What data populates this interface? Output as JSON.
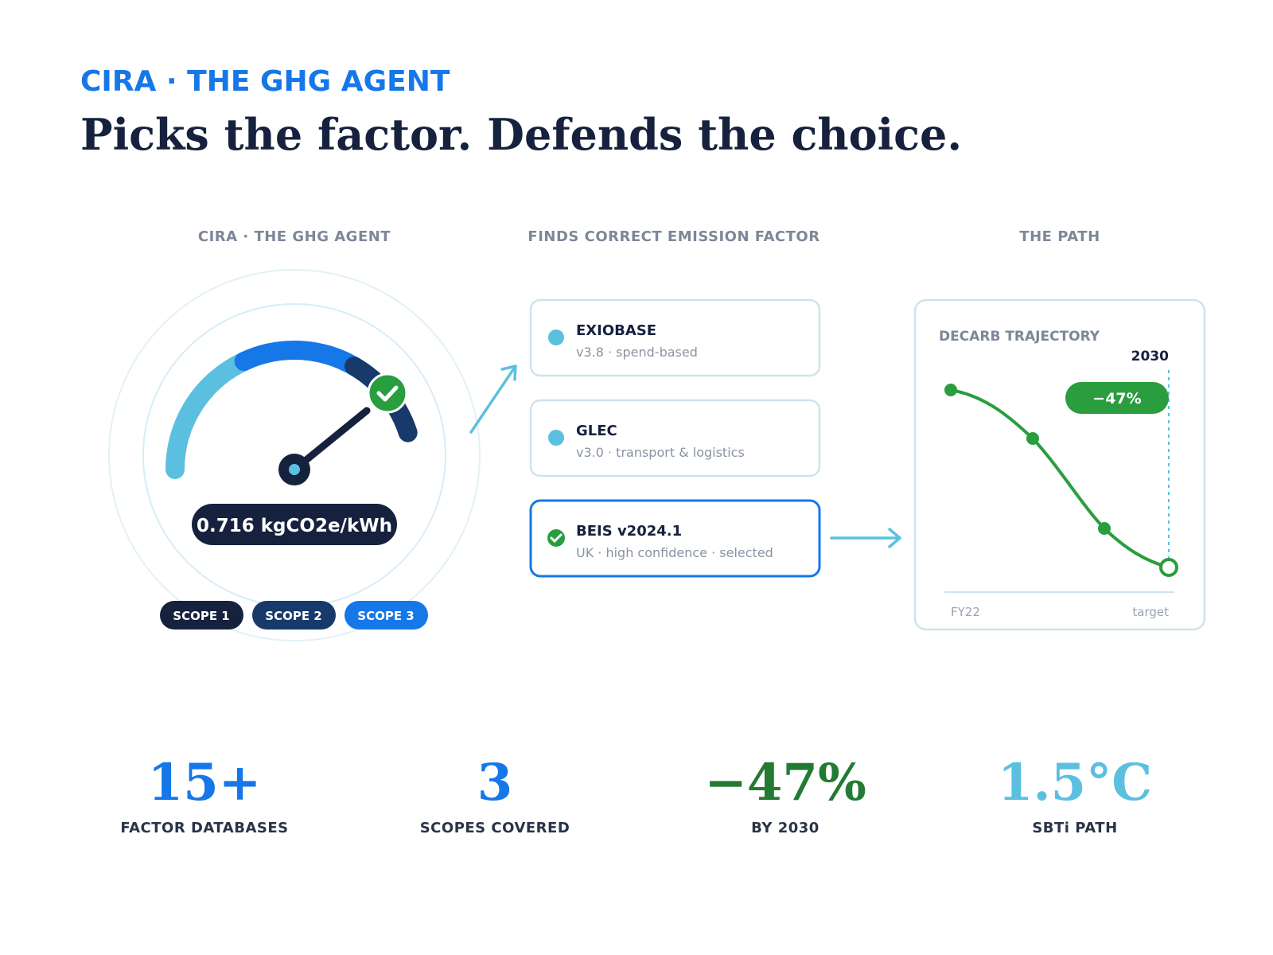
{
  "header": {
    "eyebrow": "CIRA · THE GHG AGENT",
    "title": "Picks the factor. Defends the choice."
  },
  "panels": [
    {
      "label": "CIRA · THE GHG AGENT"
    },
    {
      "label": "FINDS CORRECT EMISSION FACTOR"
    },
    {
      "label": "THE PATH"
    }
  ],
  "gauge": {
    "reading": "0.716 kgCO2e/kWh",
    "scopes": [
      "SCOPE 1",
      "SCOPE 2",
      "SCOPE 3"
    ]
  },
  "factors": [
    {
      "name": "EXIOBASE",
      "detail": "v3.8 · spend-based"
    },
    {
      "name": "GLEC",
      "detail": "v3.0 · transport & logistics"
    },
    {
      "name": "BEIS v2024.1",
      "detail": "UK · high confidence · selected"
    }
  ],
  "trajectory": {
    "title": "DECARB TRAJECTORY",
    "target_year": "2030",
    "badge": "−47%",
    "x_labels": [
      "FY22",
      "target"
    ]
  },
  "stats": [
    {
      "value": "15+",
      "label": "FACTOR DATABASES"
    },
    {
      "value": "3",
      "label": "SCOPES COVERED"
    },
    {
      "value": "−47%",
      "label": "BY 2030"
    },
    {
      "value": "1.5°C",
      "label": "SBTi PATH"
    }
  ]
}
